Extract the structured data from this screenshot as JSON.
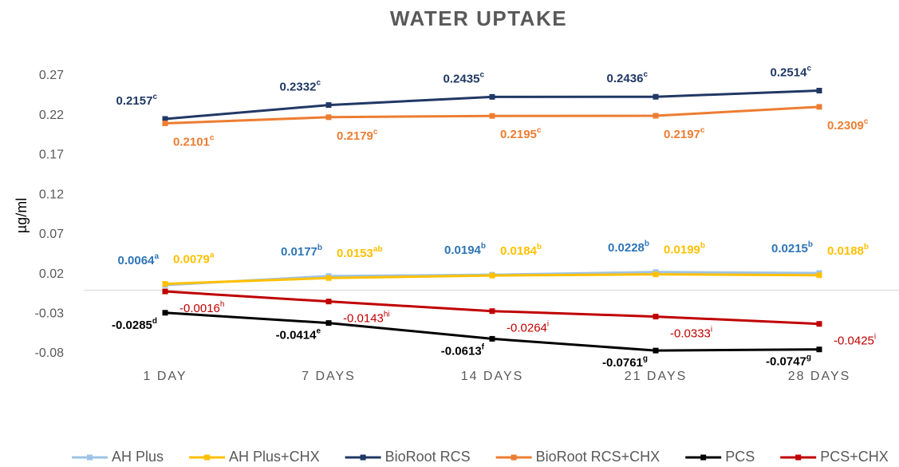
{
  "chart_data": {
    "type": "line",
    "title": "WATER UPTAKE",
    "y_label": "µg/ml",
    "categories": [
      "1 DAY",
      "7 DAYS",
      "14 DAYS",
      "21 DAYS",
      "28 DAYS"
    ],
    "ylim": [
      -0.08,
      0.27
    ],
    "yticks": [
      -0.08,
      -0.03,
      0.02,
      0.07,
      0.12,
      0.17,
      0.22,
      0.27
    ],
    "grid": false,
    "legend": "bottom",
    "series": [
      {
        "name": "AH Plus",
        "color": "#9dc3e6",
        "label_color": "#2e75b6",
        "values": [
          0.0064,
          0.0177,
          0.0194,
          0.0228,
          0.0215
        ],
        "sup_labels": [
          "a",
          "b",
          "b",
          "b",
          "b"
        ]
      },
      {
        "name": "AH Plus+CHX",
        "color": "#ffc000",
        "label_color": "#ffc000",
        "values": [
          0.0079,
          0.0153,
          0.0184,
          0.0199,
          0.0188
        ],
        "sup_labels": [
          "a",
          "ab",
          "b",
          "b",
          "b"
        ]
      },
      {
        "name": "BioRoot RCS",
        "color": "#203864",
        "label_color": "#203864",
        "values": [
          0.2157,
          0.2332,
          0.2435,
          0.2436,
          0.2514
        ],
        "sup_labels": [
          "c",
          "c",
          "c",
          "c",
          "c"
        ]
      },
      {
        "name": "BioRoot RCS+CHX",
        "color": "#ed7d31",
        "label_color": "#ed7d31",
        "values": [
          0.2101,
          0.2179,
          0.2195,
          0.2197,
          0.2309
        ],
        "sup_labels": [
          "c",
          "c",
          "c",
          "c",
          "c"
        ]
      },
      {
        "name": "PCS",
        "color": "#000000",
        "label_color": "#000000",
        "values": [
          -0.0285,
          -0.0414,
          -0.0613,
          -0.0761,
          -0.0747
        ],
        "sup_labels": [
          "d",
          "e",
          "f",
          "g",
          "g"
        ]
      },
      {
        "name": "PCS+CHX",
        "color": "#c00000",
        "label_color": "#c00000",
        "values": [
          -0.0016,
          -0.0143,
          -0.0264,
          -0.0333,
          -0.0425
        ],
        "sup_labels": [
          "h",
          "hi",
          "i",
          "i",
          "i"
        ]
      }
    ]
  }
}
